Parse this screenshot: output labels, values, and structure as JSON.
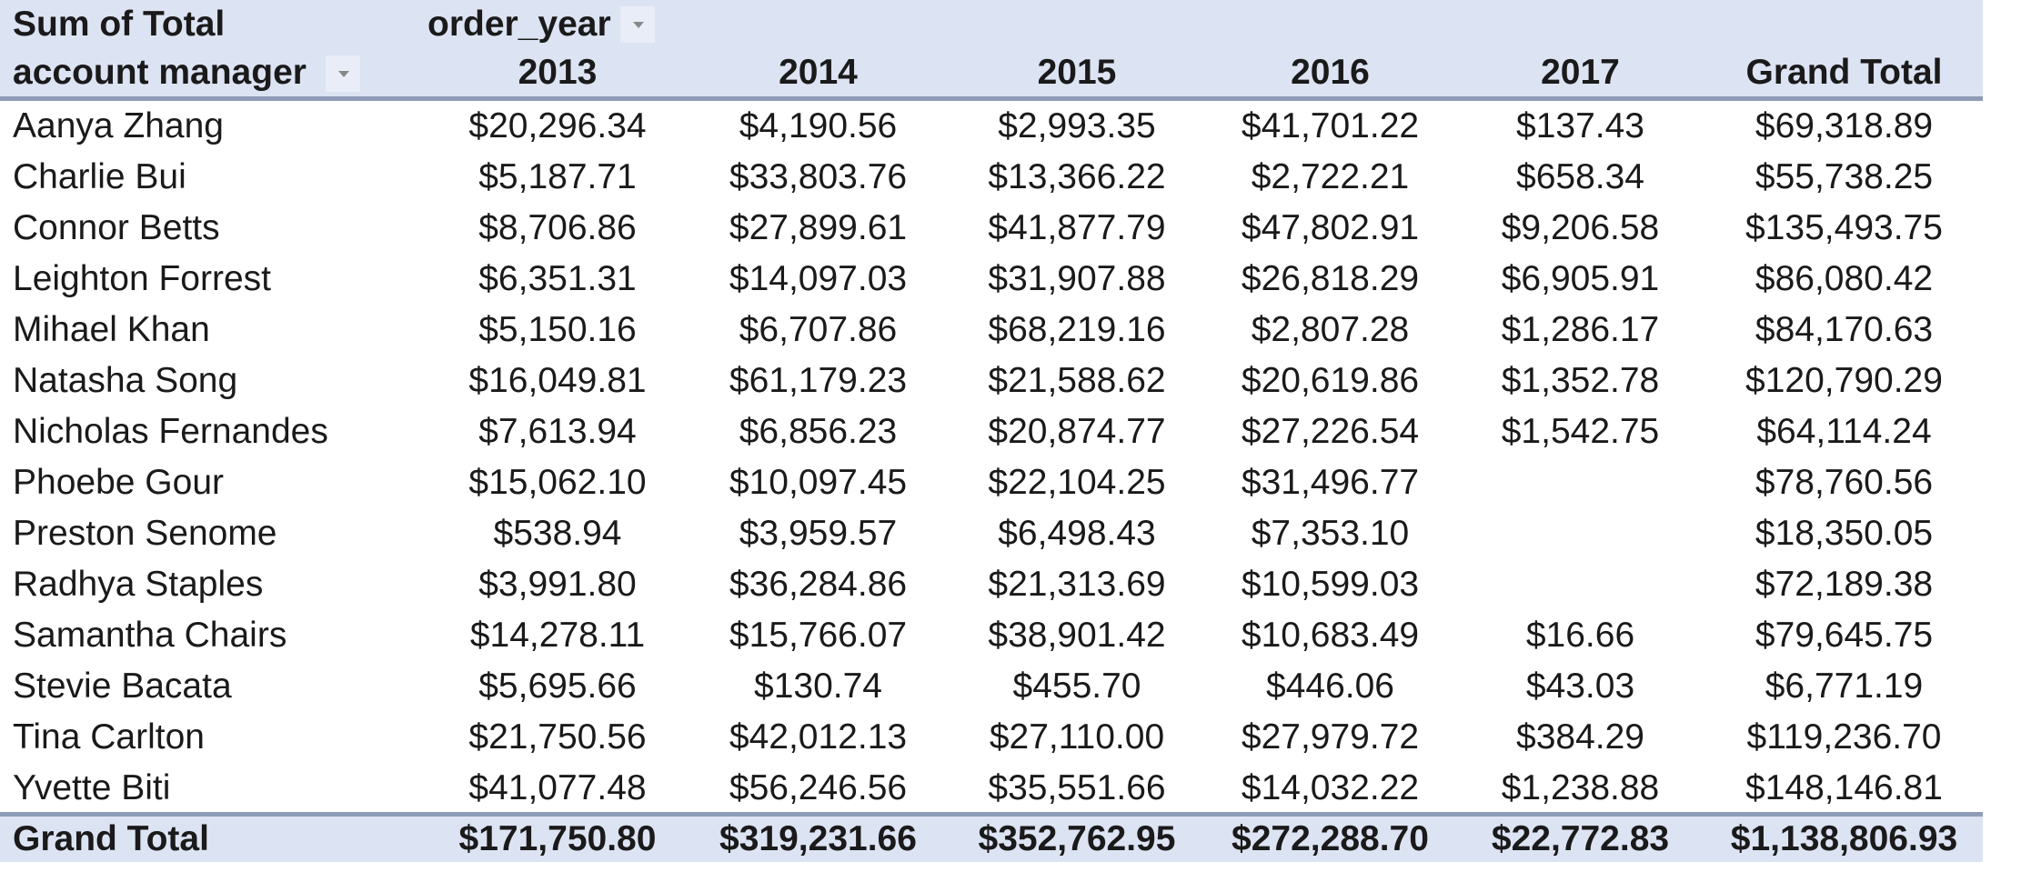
{
  "pivot": {
    "value_field": "Sum of Total",
    "column_field": "order_year",
    "row_field": "account manager",
    "columns": [
      "2013",
      "2014",
      "2015",
      "2016",
      "2017",
      "Grand Total"
    ],
    "rows": [
      {
        "name": "Aanya Zhang",
        "values": [
          "$20,296.34",
          "$4,190.56",
          "$2,993.35",
          "$41,701.22",
          "$137.43",
          "$69,318.89"
        ]
      },
      {
        "name": "Charlie Bui",
        "values": [
          "$5,187.71",
          "$33,803.76",
          "$13,366.22",
          "$2,722.21",
          "$658.34",
          "$55,738.25"
        ]
      },
      {
        "name": "Connor Betts",
        "values": [
          "$8,706.86",
          "$27,899.61",
          "$41,877.79",
          "$47,802.91",
          "$9,206.58",
          "$135,493.75"
        ]
      },
      {
        "name": "Leighton Forrest",
        "values": [
          "$6,351.31",
          "$14,097.03",
          "$31,907.88",
          "$26,818.29",
          "$6,905.91",
          "$86,080.42"
        ]
      },
      {
        "name": "Mihael Khan",
        "values": [
          "$5,150.16",
          "$6,707.86",
          "$68,219.16",
          "$2,807.28",
          "$1,286.17",
          "$84,170.63"
        ]
      },
      {
        "name": "Natasha Song",
        "values": [
          "$16,049.81",
          "$61,179.23",
          "$21,588.62",
          "$20,619.86",
          "$1,352.78",
          "$120,790.29"
        ]
      },
      {
        "name": "Nicholas Fernandes",
        "values": [
          "$7,613.94",
          "$6,856.23",
          "$20,874.77",
          "$27,226.54",
          "$1,542.75",
          "$64,114.24"
        ]
      },
      {
        "name": "Phoebe Gour",
        "values": [
          "$15,062.10",
          "$10,097.45",
          "$22,104.25",
          "$31,496.77",
          "",
          "$78,760.56"
        ]
      },
      {
        "name": "Preston Senome",
        "values": [
          "$538.94",
          "$3,959.57",
          "$6,498.43",
          "$7,353.10",
          "",
          "$18,350.05"
        ]
      },
      {
        "name": "Radhya Staples",
        "values": [
          "$3,991.80",
          "$36,284.86",
          "$21,313.69",
          "$10,599.03",
          "",
          "$72,189.38"
        ]
      },
      {
        "name": "Samantha Chairs",
        "values": [
          "$14,278.11",
          "$15,766.07",
          "$38,901.42",
          "$10,683.49",
          "$16.66",
          "$79,645.75"
        ]
      },
      {
        "name": "Stevie Bacata",
        "values": [
          "$5,695.66",
          "$130.74",
          "$455.70",
          "$446.06",
          "$43.03",
          "$6,771.19"
        ]
      },
      {
        "name": "Tina Carlton",
        "values": [
          "$21,750.56",
          "$42,012.13",
          "$27,110.00",
          "$27,979.72",
          "$384.29",
          "$119,236.70"
        ]
      },
      {
        "name": "Yvette Biti",
        "values": [
          "$41,077.48",
          "$56,246.56",
          "$35,551.66",
          "$14,032.22",
          "$1,238.88",
          "$148,146.81"
        ]
      }
    ],
    "grand_total": {
      "name": "Grand Total",
      "values": [
        "$171,750.80",
        "$319,231.66",
        "$352,762.95",
        "$272,288.70",
        "$22,772.83",
        "$1,138,806.93"
      ]
    }
  },
  "colors": {
    "header_bg": "#dce3f3",
    "header_border": "#8f9cb8"
  }
}
